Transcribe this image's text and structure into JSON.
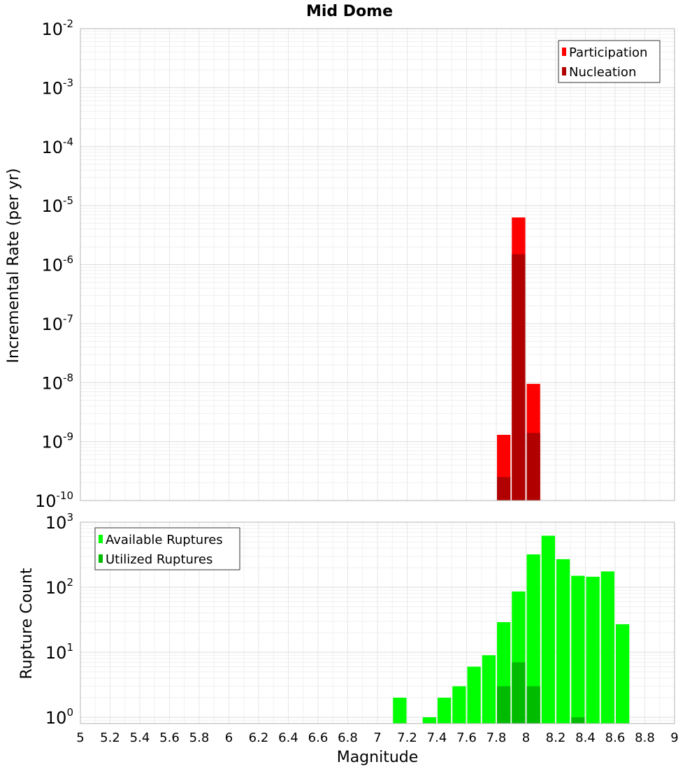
{
  "chart_data": [
    {
      "type": "bar",
      "title": "Mid Dome",
      "ylabel": "Incremental Rate (per yr)",
      "xlabel": "",
      "x_range": [
        5,
        9
      ],
      "bin_width": 0.1,
      "y_scale": "log",
      "ylim": [
        1e-10,
        0.01
      ],
      "y_tick_exponents": [
        "-10",
        "-9",
        "-8",
        "-7",
        "-6",
        "-5",
        "-4",
        "-3",
        "-2"
      ],
      "grid": true,
      "legend_position": "top-right",
      "series": [
        {
          "name": "Participation",
          "color": "#ff0000",
          "x": [
            7.85,
            7.95,
            8.05
          ],
          "values": [
            1.3e-09,
            6.3e-06,
            9.5e-09
          ]
        },
        {
          "name": "Nucleation",
          "color": "#b00000",
          "x": [
            7.85,
            7.95,
            8.05
          ],
          "values": [
            2.5e-10,
            1.5e-06,
            1.4e-09
          ]
        }
      ]
    },
    {
      "type": "bar",
      "title": "",
      "ylabel": "Rupture Count",
      "xlabel": "Magnitude",
      "x_range": [
        5,
        9
      ],
      "x_ticks": [
        "5",
        "5.2",
        "5.4",
        "5.6",
        "5.8",
        "6",
        "6.2",
        "6.4",
        "6.6",
        "6.8",
        "7",
        "7.2",
        "7.4",
        "7.6",
        "7.8",
        "8",
        "8.2",
        "8.4",
        "8.6",
        "8.8",
        "9"
      ],
      "bin_width": 0.1,
      "y_scale": "log",
      "ylim": [
        0.8,
        1000
      ],
      "y_tick_exponents": [
        "0",
        "1",
        "2",
        "3"
      ],
      "grid": true,
      "legend_position": "top-left",
      "series": [
        {
          "name": "Available Ruptures",
          "color": "#00ff00",
          "x": [
            7.15,
            7.35,
            7.45,
            7.55,
            7.65,
            7.75,
            7.85,
            7.95,
            8.05,
            8.15,
            8.25,
            8.35,
            8.45,
            8.55,
            8.65
          ],
          "values": [
            2,
            1,
            2,
            3,
            6,
            9,
            29,
            86,
            320,
            620,
            270,
            150,
            145,
            175,
            27
          ]
        },
        {
          "name": "Utilized Ruptures",
          "color": "#00bb00",
          "x": [
            7.85,
            7.95,
            8.05,
            8.35
          ],
          "values": [
            3,
            7,
            3,
            1
          ]
        }
      ]
    }
  ]
}
